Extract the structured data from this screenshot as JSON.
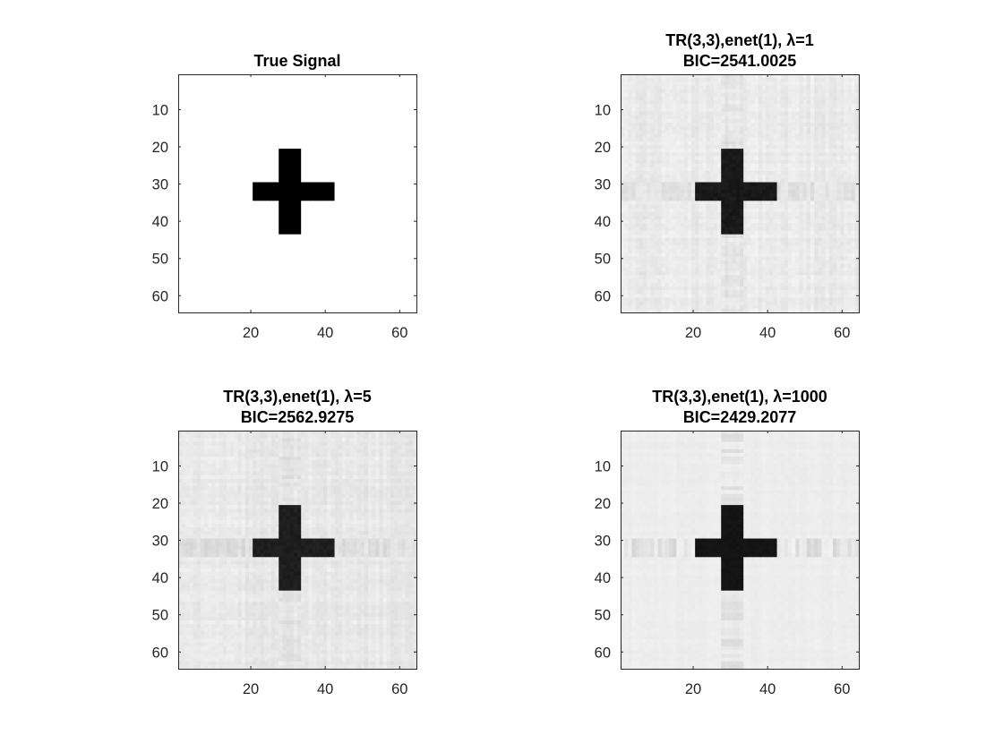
{
  "chart_data": [
    {
      "type": "heatmap",
      "panel": "top-left",
      "title_lines": [
        "True Signal"
      ],
      "xticks": [
        20,
        40,
        60
      ],
      "yticks": [
        10,
        20,
        30,
        40,
        50,
        60
      ],
      "xlim": [
        0.5,
        64.5
      ],
      "ylim": [
        0.5,
        64.5
      ],
      "y_direction": "reversed",
      "grid_size": 64,
      "colormap": "gray",
      "background_gray": 1.0,
      "noise_level": 0.0,
      "cross_shadow": 0.0,
      "cross": {
        "rows": [
          21,
          43
        ],
        "cols": [
          21,
          42
        ],
        "bar_rows": [
          30,
          34
        ],
        "stem_cols": [
          28,
          33
        ],
        "value": 0.0
      }
    },
    {
      "type": "heatmap",
      "panel": "top-right",
      "title_lines": [
        "TR(3,3),enet(1), λ=1",
        "BIC=2541.0025"
      ],
      "xticks": [
        20,
        40,
        60
      ],
      "yticks": [
        10,
        20,
        30,
        40,
        50,
        60
      ],
      "xlim": [
        0.5,
        64.5
      ],
      "ylim": [
        0.5,
        64.5
      ],
      "y_direction": "reversed",
      "grid_size": 64,
      "colormap": "gray",
      "background_gray": 0.92,
      "noise_level": 0.05,
      "cross_shadow": 0.06,
      "cross": {
        "rows": [
          21,
          43
        ],
        "cols": [
          21,
          42
        ],
        "bar_rows": [
          30,
          34
        ],
        "stem_cols": [
          28,
          33
        ],
        "value": 0.1
      }
    },
    {
      "type": "heatmap",
      "panel": "bottom-left",
      "title_lines": [
        "TR(3,3),enet(1), λ=5",
        "BIC=2562.9275"
      ],
      "xticks": [
        20,
        40,
        60
      ],
      "yticks": [
        10,
        20,
        30,
        40,
        50,
        60
      ],
      "xlim": [
        0.5,
        64.5
      ],
      "ylim": [
        0.5,
        64.5
      ],
      "y_direction": "reversed",
      "grid_size": 64,
      "colormap": "gray",
      "background_gray": 0.91,
      "noise_level": 0.05,
      "cross_shadow": 0.06,
      "cross": {
        "rows": [
          21,
          43
        ],
        "cols": [
          21,
          42
        ],
        "bar_rows": [
          30,
          34
        ],
        "stem_cols": [
          28,
          33
        ],
        "value": 0.12
      }
    },
    {
      "type": "heatmap",
      "panel": "bottom-right",
      "title_lines": [
        "TR(3,3),enet(1), λ=1000",
        "BIC=2429.2077"
      ],
      "xticks": [
        20,
        40,
        60
      ],
      "yticks": [
        10,
        20,
        30,
        40,
        50,
        60
      ],
      "xlim": [
        0.5,
        64.5
      ],
      "ylim": [
        0.5,
        64.5
      ],
      "y_direction": "reversed",
      "grid_size": 64,
      "colormap": "gray",
      "background_gray": 0.93,
      "noise_level": 0.02,
      "cross_shadow": 0.08,
      "cross": {
        "rows": [
          21,
          43
        ],
        "cols": [
          21,
          42
        ],
        "bar_rows": [
          30,
          34
        ],
        "stem_cols": [
          28,
          33
        ],
        "value": 0.08
      }
    }
  ]
}
